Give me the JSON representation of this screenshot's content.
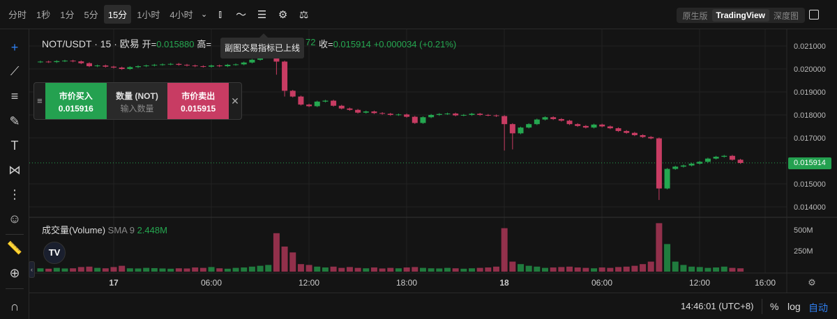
{
  "toolbar": {
    "intervals": [
      "分时",
      "1秒",
      "1分",
      "5分",
      "15分",
      "1小时",
      "4小时"
    ],
    "active_interval": "15分",
    "icons": [
      "chevron-down-icon",
      "candles-icon",
      "indicator-icon",
      "list-settings-icon",
      "gear-icon",
      "balance-scale-icon"
    ],
    "views": [
      "原生版",
      "TradingView",
      "深度图"
    ],
    "active_view": "TradingView"
  },
  "legend": {
    "symbol": "NOT/USDT · 15 · 欧易",
    "open_label": "开=",
    "open": "0.015880",
    "high_label": "高=",
    "close_partial": "72",
    "close_label": "收=",
    "close": "0.015914",
    "change": "+0.000034 (+0.21%)"
  },
  "tooltip": "副图交易指标已上线",
  "trade_panel": {
    "buy_label": "市价买入",
    "buy_price": "0.015916",
    "qty_label": "数量 (NOT)",
    "qty_placeholder": "输入数量",
    "sell_label": "市价卖出",
    "sell_price": "0.015915"
  },
  "volume_legend": {
    "name": "成交量(Volume)",
    "sma": "SMA 9",
    "value": "2.448M"
  },
  "logo": "TV",
  "bottom": {
    "time": "14:46:01 (UTC+8)",
    "percent": "%",
    "log": "log",
    "auto": "自动"
  },
  "colors": {
    "up": "#25a750",
    "down": "#c83c63",
    "background": "#141414"
  },
  "chart_data": {
    "type": "candlestick",
    "interval_note": "15",
    "price_axis": [
      "0.021000",
      "0.020000",
      "0.019000",
      "0.018000",
      "0.017000",
      "0.015000",
      "0.014000"
    ],
    "price_range": [
      0.0137,
      0.0213
    ],
    "last_price": "0.015914",
    "time_axis": [
      "17",
      "06:00",
      "12:00",
      "18:00",
      "18",
      "06:00",
      "12:00",
      "16:00"
    ],
    "volume_axis": [
      "500M",
      "250M"
    ],
    "first_open": 0.0203,
    "closes": [
      0.02032,
      0.0203,
      0.02034,
      0.02036,
      0.02033,
      0.02025,
      0.02012,
      0.02015,
      0.0201,
      0.02006,
      0.02,
      0.02008,
      0.02012,
      0.02015,
      0.02018,
      0.0202,
      0.02022,
      0.02018,
      0.02015,
      0.02012,
      0.0201,
      0.02015,
      0.02012,
      0.02018,
      0.0202,
      0.02028,
      0.0204,
      0.02052,
      0.0206,
      0.02032,
      0.01905,
      0.0188,
      0.01845,
      0.01838,
      0.01858,
      0.01862,
      0.0184,
      0.01828,
      0.01822,
      0.0181,
      0.01815,
      0.01808,
      0.01805,
      0.018,
      0.01802,
      0.01792,
      0.01765,
      0.0179,
      0.018,
      0.01804,
      0.01806,
      0.01798,
      0.018,
      0.01805,
      0.018,
      0.01798,
      0.01795,
      0.0176,
      0.0172,
      0.01745,
      0.0176,
      0.0178,
      0.0179,
      0.01782,
      0.01775,
      0.0176,
      0.01752,
      0.01745,
      0.01758,
      0.0175,
      0.01742,
      0.0173,
      0.01722,
      0.01712,
      0.01704,
      0.01698,
      0.0148,
      0.01565,
      0.01575,
      0.0158,
      0.01588,
      0.01596,
      0.0161,
      0.01618,
      0.01622,
      0.01605,
      0.01591
    ],
    "lows": {
      "29": 0.01975,
      "30": 0.0188,
      "57": 0.01645,
      "58": 0.0165,
      "76": 0.0143
    },
    "volumes_M": [
      40,
      35,
      45,
      38,
      40,
      55,
      60,
      45,
      40,
      55,
      70,
      40,
      38,
      45,
      42,
      38,
      35,
      40,
      38,
      50,
      45,
      55,
      40,
      35,
      45,
      50,
      60,
      70,
      80,
      460,
      300,
      230,
      90,
      80,
      60,
      50,
      60,
      45,
      55,
      45,
      40,
      50,
      38,
      45,
      40,
      50,
      55,
      45,
      40,
      38,
      45,
      40,
      35,
      40,
      45,
      50,
      60,
      520,
      120,
      90,
      70,
      60,
      45,
      50,
      55,
      60,
      50,
      45,
      40,
      50,
      45,
      55,
      60,
      70,
      90,
      120,
      580,
      330,
      120,
      80,
      60,
      55,
      45,
      50,
      60,
      45,
      40
    ]
  }
}
